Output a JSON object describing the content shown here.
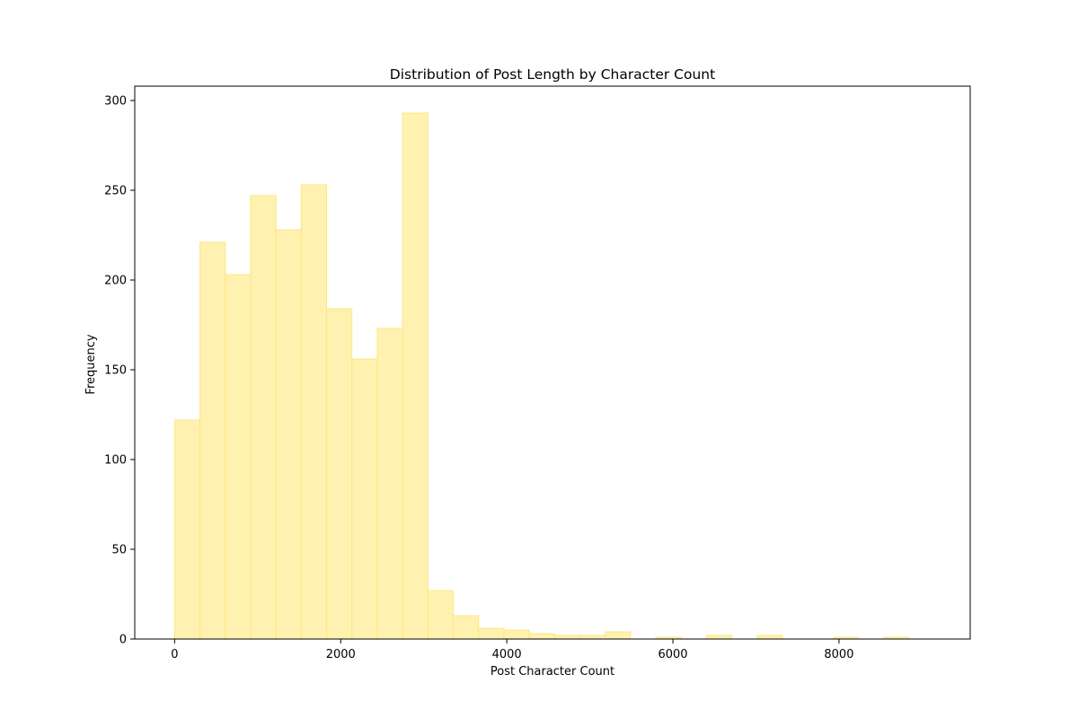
{
  "chart_data": {
    "type": "histogram",
    "title": "Distribution of Post Length by Character Count",
    "xlabel": "Post Character Count",
    "ylabel": "Frequency",
    "xlim": [
      -480,
      9580
    ],
    "ylim": [
      0,
      308
    ],
    "x_ticks": [
      0,
      2000,
      4000,
      6000,
      8000
    ],
    "y_ticks": [
      0,
      50,
      100,
      150,
      200,
      250,
      300
    ],
    "bin_start": 0,
    "bin_width": 305,
    "values": [
      122,
      221,
      203,
      247,
      228,
      253,
      184,
      156,
      173,
      293,
      27,
      13,
      6,
      5,
      3,
      2,
      2,
      4,
      0,
      1,
      0,
      2,
      0,
      2,
      0,
      0,
      1,
      0,
      1,
      0
    ],
    "colors": {
      "bar_fill": "#fff1b0",
      "bar_edge": "#ffe680"
    },
    "grid": false
  }
}
